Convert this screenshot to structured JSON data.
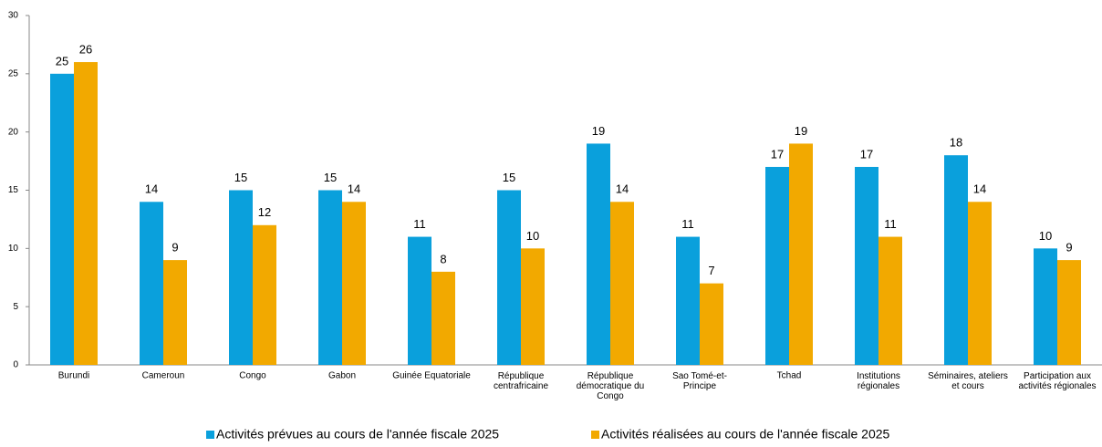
{
  "chart_data": {
    "type": "bar",
    "categories": [
      "Burundi",
      "Cameroun",
      "Congo",
      "Gabon",
      "Guinée Equatoriale",
      "République\ncentrafricaine",
      "République\ndémocratique du\nCongo",
      "Sao Tomé-et-\nPrincipe",
      "Tchad",
      "Institutions\nrégionales",
      "Séminaires, ateliers\net cours",
      "Participation aux\nactivités régionales"
    ],
    "series": [
      {
        "name": "Activités prévues au cours de l'année fiscale 2025",
        "color": "#0aa0dc",
        "values": [
          25,
          14,
          15,
          15,
          11,
          15,
          19,
          11,
          17,
          17,
          18,
          10
        ]
      },
      {
        "name": "Activités réalisées au cours de l'année fiscale 2025",
        "color": "#f2a900",
        "values": [
          26,
          9,
          12,
          14,
          8,
          10,
          14,
          7,
          19,
          11,
          14,
          9
        ]
      }
    ],
    "ylim": [
      0,
      30
    ],
    "yticks": [
      0,
      5,
      10,
      15,
      20,
      25,
      30
    ],
    "grid": false,
    "legend": "bottom"
  }
}
